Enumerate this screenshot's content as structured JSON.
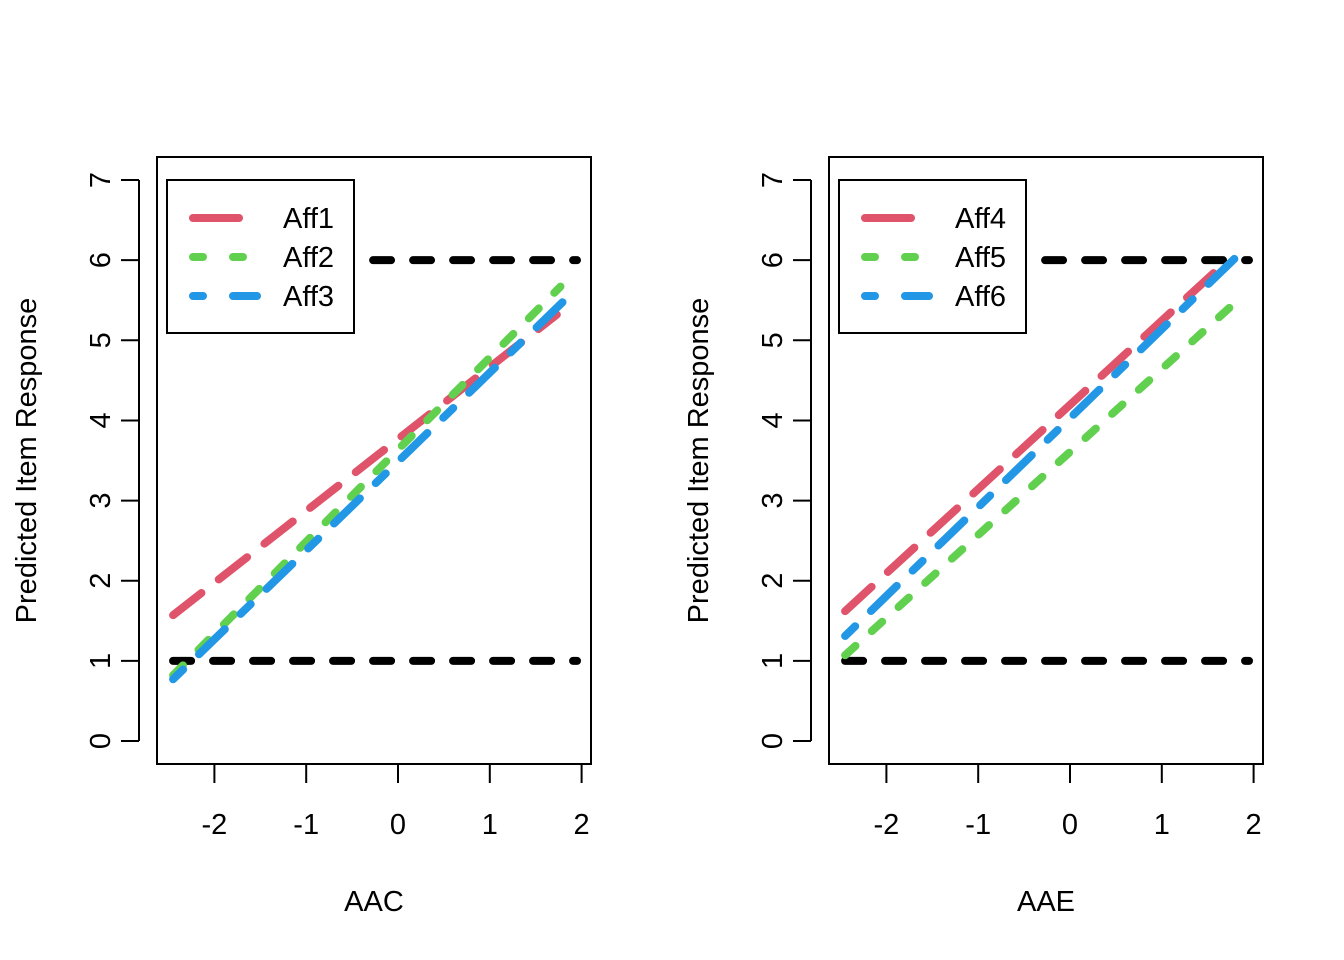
{
  "chart_data": [
    {
      "type": "line",
      "title": "",
      "xlabel": "AAC",
      "ylabel": "Predicted Item Response",
      "xlim": [
        -2.6,
        2.1
      ],
      "ylim": [
        0,
        7
      ],
      "xticks": [
        -2,
        -1,
        0,
        1,
        2
      ],
      "xtick_labels": [
        "-2",
        "-1",
        "0",
        "1",
        "2"
      ],
      "yticks": [
        0,
        1,
        2,
        3,
        4,
        5,
        6,
        7
      ],
      "ytick_labels": [
        "0",
        "1",
        "2",
        "3",
        "4",
        "5",
        "6",
        "7"
      ],
      "grid": false,
      "legend": {
        "placement": "top-left",
        "entries": [
          "Aff1",
          "Aff2",
          "Aff3"
        ]
      },
      "reference_lines": [
        {
          "y": 1,
          "x": [
            -2.45,
            1.95
          ],
          "color": "#000000",
          "style": "dotted"
        },
        {
          "y": 6,
          "x": [
            -2.45,
            1.95
          ],
          "color": "#000000",
          "style": "dotted"
        }
      ],
      "series": [
        {
          "name": "Aff1",
          "color": "#DF536B",
          "style": "longdash",
          "x": [
            -2.45,
            1.73
          ],
          "y": [
            1.57,
            5.32
          ]
        },
        {
          "name": "Aff2",
          "color": "#61D04F",
          "style": "dashed",
          "x": [
            -2.45,
            1.77
          ],
          "y": [
            0.82,
            5.67
          ]
        },
        {
          "name": "Aff3",
          "color": "#2297E6",
          "style": "dotdash",
          "x": [
            -2.45,
            1.95
          ],
          "y": [
            0.77,
            5.65
          ]
        }
      ]
    },
    {
      "type": "line",
      "title": "",
      "xlabel": "AAE",
      "ylabel": "Predicted Item Response",
      "xlim": [
        -2.6,
        2.1
      ],
      "ylim": [
        0,
        7
      ],
      "xticks": [
        -2,
        -1,
        0,
        1,
        2
      ],
      "xtick_labels": [
        "-2",
        "-1",
        "0",
        "1",
        "2"
      ],
      "yticks": [
        0,
        1,
        2,
        3,
        4,
        5,
        6,
        7
      ],
      "ytick_labels": [
        "0",
        "1",
        "2",
        "3",
        "4",
        "5",
        "6",
        "7"
      ],
      "grid": false,
      "legend": {
        "placement": "top-left",
        "entries": [
          "Aff4",
          "Aff5",
          "Aff6"
        ]
      },
      "reference_lines": [
        {
          "y": 1,
          "x": [
            -2.45,
            1.95
          ],
          "color": "#000000",
          "style": "dotted"
        },
        {
          "y": 6,
          "x": [
            -2.45,
            1.95
          ],
          "color": "#000000",
          "style": "dotted"
        }
      ],
      "series": [
        {
          "name": "Aff4",
          "color": "#DF536B",
          "style": "longdash",
          "x": [
            -2.45,
            1.68
          ],
          "y": [
            1.62,
            5.96
          ]
        },
        {
          "name": "Aff5",
          "color": "#61D04F",
          "style": "dashed",
          "x": [
            -2.45,
            1.77
          ],
          "y": [
            1.07,
            5.44
          ]
        },
        {
          "name": "Aff6",
          "color": "#2297E6",
          "style": "dotdash",
          "x": [
            -2.45,
            1.92
          ],
          "y": [
            1.31,
            6.16
          ]
        }
      ]
    }
  ]
}
